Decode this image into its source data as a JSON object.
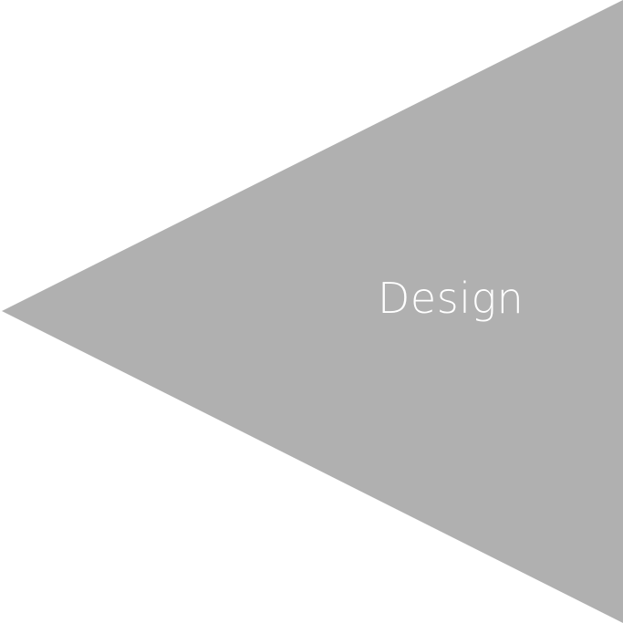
{
  "diagram": {
    "label": "Design",
    "fill_color": "#b0b0b0",
    "text_color": "#ffffff",
    "shape": "triangle-pointing-left"
  }
}
